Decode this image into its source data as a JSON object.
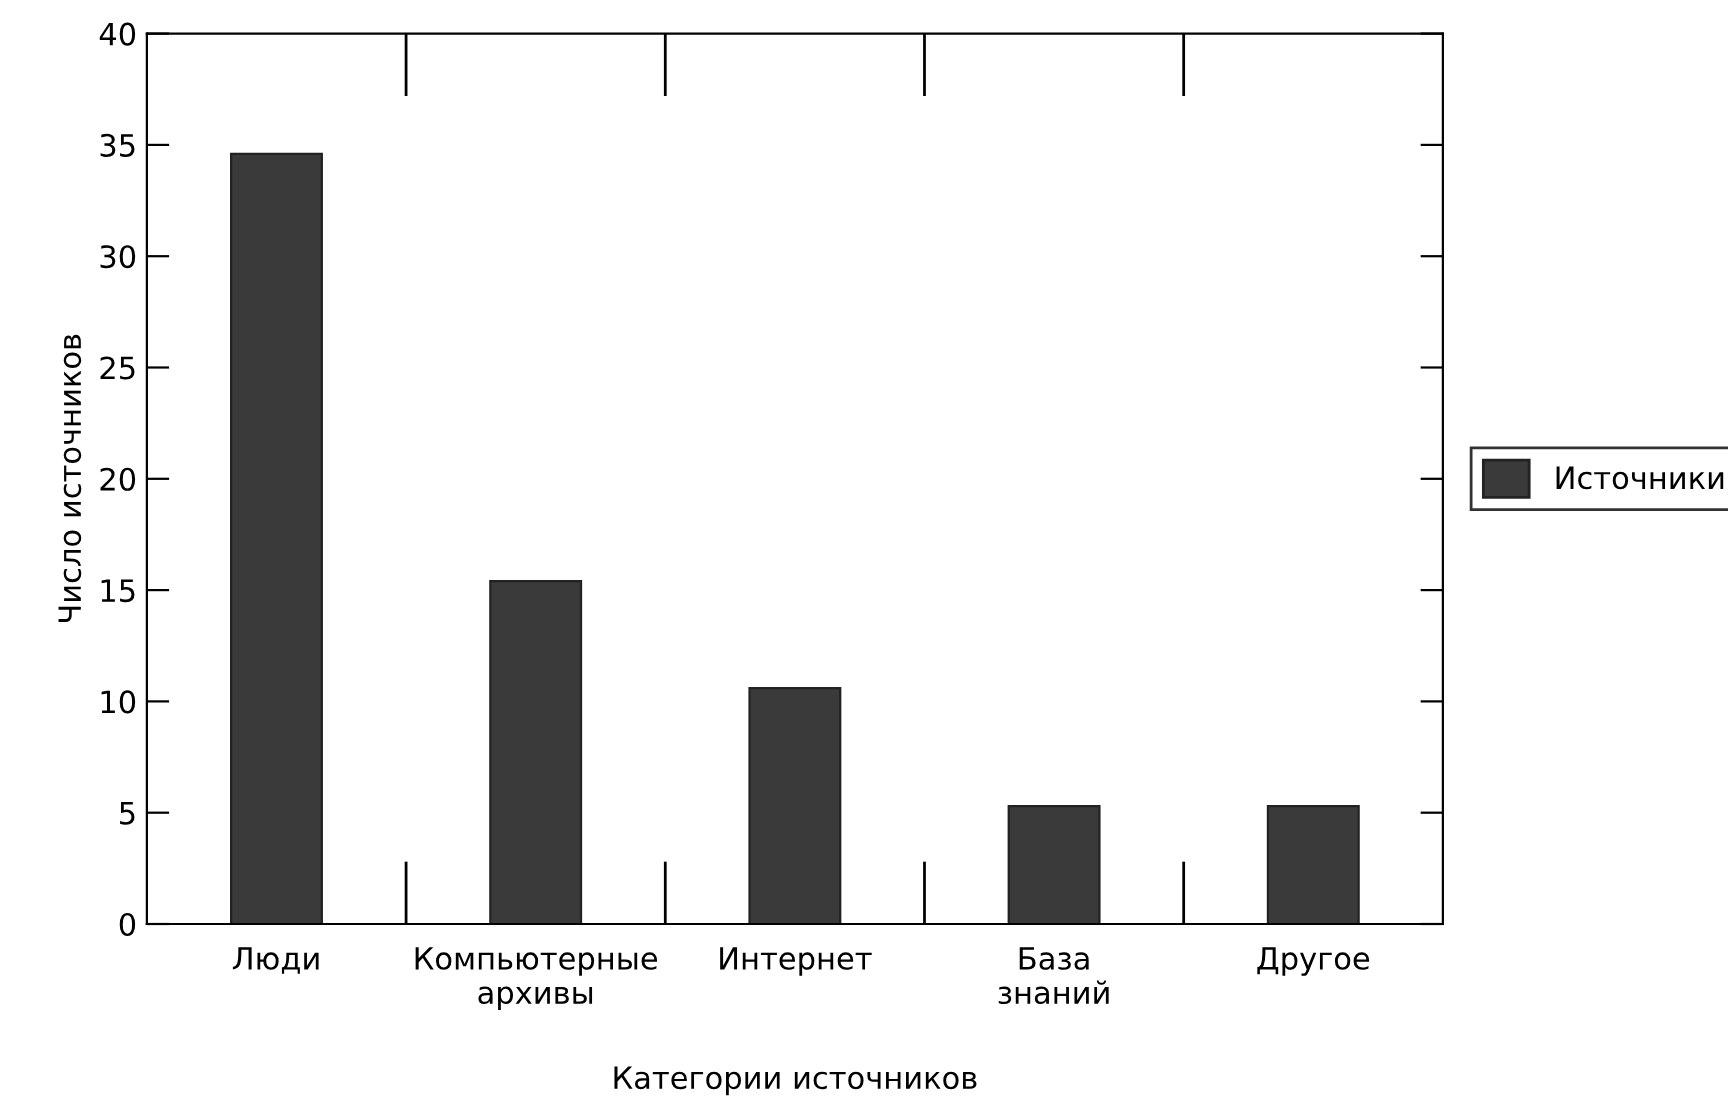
{
  "chart_data": {
    "type": "bar",
    "xlabel": "Категории источников",
    "ylabel": "Число источников",
    "categories": [
      "Люди",
      "Компьютерные\nархивы",
      "Интернет",
      "База\nзнаний",
      "Другое"
    ],
    "series": [
      {
        "name": "Источники",
        "color": "#3a3a3a",
        "values": [
          34.6,
          15.4,
          10.6,
          5.3,
          5.3
        ]
      }
    ],
    "ylim": [
      0,
      40
    ],
    "yticks": [
      0,
      5,
      10,
      15,
      20,
      25,
      30,
      35,
      40
    ],
    "grid": false,
    "legend": "right"
  }
}
